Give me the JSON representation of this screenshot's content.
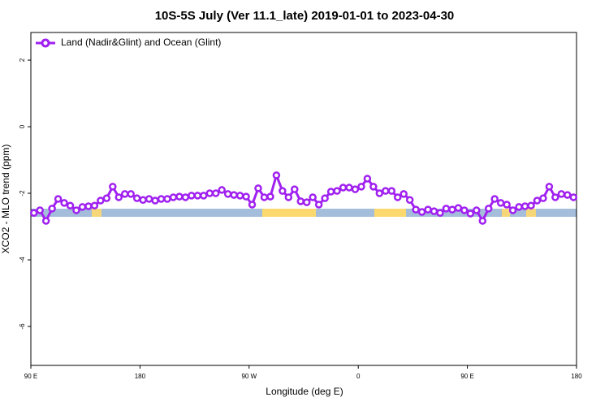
{
  "chart_data": {
    "type": "line",
    "title": "10S-5S July (Ver 11.1_late)   2019-01-01 to 2023-04-30",
    "x_label": "Longitude (deg E)",
    "y_label": "XCO2 - MLO trend (ppm)",
    "xlim": [
      90,
      540
    ],
    "xticks": [
      {
        "value": 90,
        "label": "90 E"
      },
      {
        "value": 180,
        "label": "180"
      },
      {
        "value": 270,
        "label": "90 W"
      },
      {
        "value": 360,
        "label": "0"
      },
      {
        "value": 450,
        "label": "90 E"
      },
      {
        "value": 540,
        "label": "180"
      }
    ],
    "ylim": [
      -7.17,
      2.83
    ],
    "yticks": [
      2,
      0,
      -2,
      -4,
      -6
    ],
    "legend": "top-left",
    "x": [
      92.5,
      97.5,
      102.5,
      107.5,
      112.5,
      117.5,
      122.5,
      127.5,
      132.5,
      137.5,
      142.5,
      147.5,
      152.5,
      157.5,
      162.5,
      167.5,
      172.5,
      177.5,
      182.5,
      187.5,
      192.5,
      197.5,
      202.5,
      207.5,
      212.5,
      217.5,
      222.5,
      227.5,
      232.5,
      237.5,
      242.5,
      247.5,
      252.5,
      257.5,
      262.5,
      267.5,
      272.5,
      277.5,
      282.5,
      287.5,
      292.5,
      297.5,
      302.5,
      307.5,
      312.5,
      317.5,
      322.5,
      327.5,
      332.5,
      337.5,
      342.5,
      347.5,
      352.5,
      357.5,
      362.5,
      367.5,
      372.5,
      377.5,
      382.5,
      387.5,
      392.5,
      397.5,
      402.5,
      407.5,
      412.5,
      417.5,
      422.5,
      427.5,
      432.5,
      437.5,
      442.5,
      447.5,
      452.5,
      457.5,
      462.5,
      467.5,
      472.5,
      477.5,
      482.5,
      487.5,
      492.5,
      497.5,
      502.5,
      507.5,
      512.5,
      517.5,
      522.5,
      527.5,
      532.5,
      537.5
    ],
    "series": [
      {
        "name": "Land (Nadir&Glint) and Ocean (Glint)",
        "color": "#a020f0",
        "values": [
          -2.59,
          -2.51,
          -2.83,
          -2.46,
          -2.17,
          -2.29,
          -2.37,
          -2.51,
          -2.41,
          -2.39,
          -2.37,
          -2.22,
          -2.15,
          -1.8,
          -2.12,
          -2.02,
          -2.02,
          -2.15,
          -2.2,
          -2.17,
          -2.22,
          -2.17,
          -2.17,
          -2.12,
          -2.1,
          -2.12,
          -2.07,
          -2.07,
          -2.07,
          -2.0,
          -2.0,
          -1.9,
          -2.02,
          -2.05,
          -2.07,
          -2.1,
          -2.34,
          -1.85,
          -2.12,
          -2.1,
          -1.46,
          -1.93,
          -2.12,
          -1.88,
          -2.24,
          -2.27,
          -2.12,
          -2.34,
          -2.15,
          -1.95,
          -1.93,
          -1.83,
          -1.83,
          -1.88,
          -1.8,
          -1.56,
          -1.8,
          -2.0,
          -1.93,
          -1.93,
          -2.12,
          -2.02,
          -2.2,
          -2.49,
          -2.56,
          -2.49,
          -2.54,
          -2.59,
          -2.46,
          -2.49,
          -2.44,
          -2.51,
          -2.61,
          -2.51,
          -2.83,
          -2.46,
          -2.17,
          -2.29,
          -2.34,
          -2.51,
          -2.41,
          -2.39,
          -2.37,
          -2.22,
          -2.15,
          -1.8,
          -2.12,
          -2.02,
          -2.05,
          -2.12
        ]
      }
    ]
  }
}
